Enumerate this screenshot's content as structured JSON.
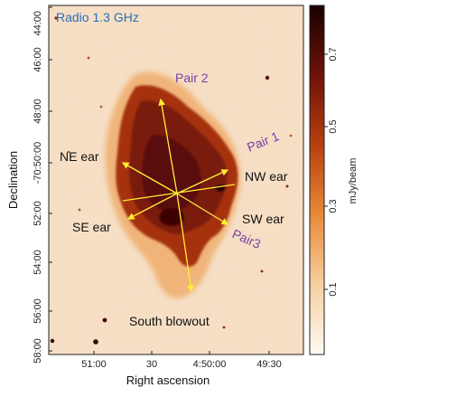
{
  "image": {
    "title": "Radio 1.3 GHz",
    "x_axis_label": "Right ascension",
    "y_axis_label": "Declination",
    "x_ticks": [
      "51:00",
      "30",
      "4:50:00",
      "49:30"
    ],
    "y_ticks": [
      "44:00",
      "46:00",
      "48:00",
      "-70:50:00",
      "52:00",
      "54:00",
      "56:00",
      "58:00"
    ],
    "colorbar_label": "mJy/beam",
    "colorbar_ticks": [
      "0.1",
      "0.3",
      "0.5",
      "0.7"
    ],
    "annotations": {
      "pair2": "Pair 2",
      "pair1": "Pair 1",
      "pair3": "Pair3",
      "ne_ear": "NE ear",
      "nw_ear": "NW ear",
      "se_ear": "SE ear",
      "sw_ear": "SW ear",
      "south_blowout": "South blowout"
    },
    "colors": {
      "background": "#f8e4cc",
      "nebula_dark": "#5a0c08",
      "nebula_mid": "#a8300c",
      "nebula_edge": "#e8892f",
      "arrow": "#ffee33",
      "label_purple": "#7a3fa6",
      "title_blue": "#2a6fb5"
    }
  }
}
